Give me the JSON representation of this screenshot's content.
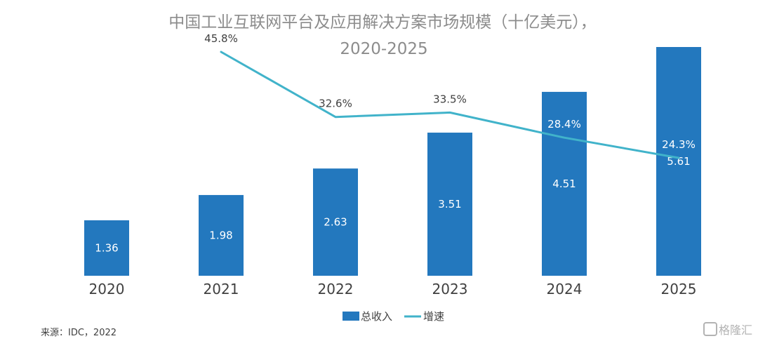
{
  "chart_data": {
    "type": "bar",
    "title_line1": "中国工业互联网平台及应用解决方案市场规模（十亿美元），",
    "title_line2": "2020-2025",
    "categories": [
      "2020",
      "2021",
      "2022",
      "2023",
      "2024",
      "2025"
    ],
    "series": [
      {
        "name": "总收入",
        "type": "bar",
        "values": [
          1.36,
          1.98,
          2.63,
          3.51,
          4.51,
          5.61
        ],
        "labels": [
          "1.36",
          "1.98",
          "2.63",
          "3.51",
          "4.51",
          "5.61"
        ],
        "color": "#2378be"
      },
      {
        "name": "增速",
        "type": "line",
        "values": [
          null,
          45.8,
          32.6,
          33.5,
          28.4,
          24.3
        ],
        "labels": [
          "",
          "45.8%",
          "32.6%",
          "33.5%",
          "28.4%",
          "24.3%"
        ],
        "color": "#41b3ca"
      }
    ],
    "xlabel": "",
    "ylabel": "",
    "grid": false,
    "legend": "bottom-center"
  },
  "source": "来源：IDC，2022",
  "watermark": "格隆汇"
}
